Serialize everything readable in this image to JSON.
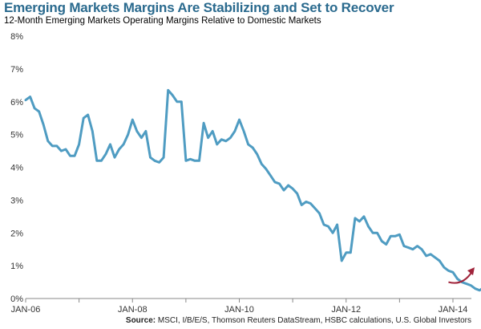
{
  "colors": {
    "title": "#2a6a8e",
    "line": "#4f9cc2",
    "arrow": "#a0233a",
    "axis": "#888888"
  },
  "title": "Emerging Markets Margins Are Stabilizing and Set to Recover",
  "subtitle": "12-Month Emerging Markets Operating Margins Relative to Domestic Markets",
  "source_label": "Source:",
  "source_text": "MSCI, I/B/E/S, Thomson Reuters DataStream, HSBC calculations, U.S. Global Investors",
  "chart_data": {
    "type": "line",
    "ylim": [
      0,
      8
    ],
    "yticks": [
      "0%",
      "1%",
      "2%",
      "3%",
      "4%",
      "5%",
      "6%",
      "7%",
      "8%"
    ],
    "xticks": [
      "JAN-06",
      "JAN-08",
      "JAN-10",
      "JAN-12",
      "JAN-14"
    ],
    "x_start": "JAN-06",
    "x_end": "JUN-14",
    "grid": false,
    "annotation": "upward arrow near Jan-14",
    "series": [
      {
        "values": [
          6.05,
          6.15,
          5.8,
          5.7,
          5.3,
          4.8,
          4.65,
          4.65,
          4.5,
          4.55,
          4.35,
          4.35,
          4.7,
          5.5,
          5.6,
          5.1,
          4.2,
          4.2,
          4.4,
          4.7,
          4.3,
          4.55,
          4.7,
          5.0,
          5.45,
          5.1,
          4.9,
          5.1,
          4.3,
          4.2,
          4.15,
          4.3,
          6.35,
          6.2,
          6.0,
          6.0,
          4.2,
          4.25,
          4.2,
          4.2,
          5.35,
          4.9,
          5.1,
          4.7,
          4.85,
          4.8,
          4.9,
          5.1,
          5.45,
          5.1,
          4.7,
          4.6,
          4.4,
          4.1,
          3.95,
          3.75,
          3.55,
          3.5,
          3.3,
          3.45,
          3.35,
          3.2,
          2.85,
          2.95,
          2.9,
          2.75,
          2.6,
          2.25,
          2.2,
          2.0,
          2.25,
          1.15,
          1.4,
          1.4,
          2.45,
          2.35,
          2.5,
          2.2,
          2.0,
          2.0,
          1.75,
          1.65,
          1.9,
          1.9,
          1.95,
          1.6,
          1.55,
          1.5,
          1.6,
          1.5,
          1.3,
          1.35,
          1.25,
          1.15,
          0.95,
          0.85,
          0.8,
          0.6,
          0.5,
          0.45,
          0.4,
          0.3,
          0.25,
          0.35,
          0.3,
          0.4
        ]
      }
    ]
  }
}
